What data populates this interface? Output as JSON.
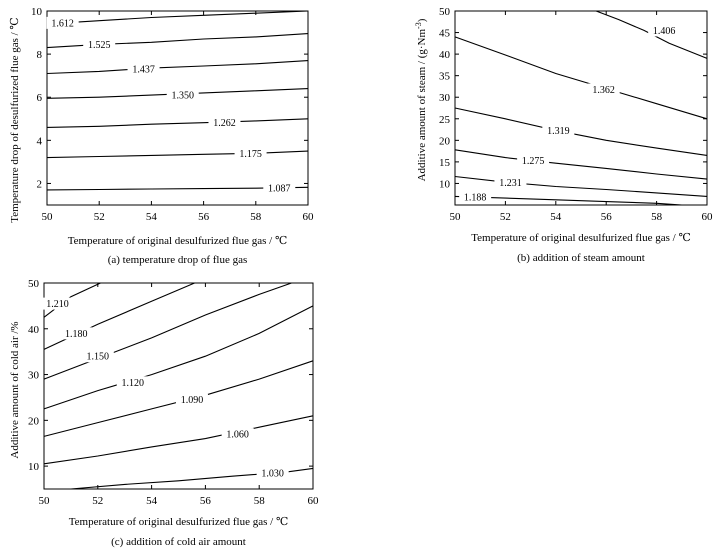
{
  "chart_data": [
    {
      "type": "contour",
      "caption": "(a) temperature drop of flue gas",
      "xlabel": "Temperature of original desulfurized flue gas / ℃",
      "ylabel": "Temperature drop of desulfurized flue gas / ℃",
      "xlim": [
        50,
        60
      ],
      "ylim": [
        1,
        10
      ],
      "xticks": [
        "50",
        "52",
        "54",
        "56",
        "58",
        "60"
      ],
      "yticks": [
        "2",
        "4",
        "6",
        "8",
        "10"
      ],
      "contours": [
        {
          "level": "1.612",
          "points": [
            [
              50,
              9.4
            ],
            [
              52,
              9.55
            ],
            [
              54,
              9.7
            ],
            [
              56,
              9.8
            ],
            [
              58,
              9.9
            ],
            [
              60,
              10.0
            ]
          ],
          "label_at": [
            50.6,
            9.45
          ]
        },
        {
          "level": "1.525",
          "points": [
            [
              50,
              8.3
            ],
            [
              52,
              8.45
            ],
            [
              54,
              8.55
            ],
            [
              56,
              8.7
            ],
            [
              58,
              8.8
            ],
            [
              60,
              8.95
            ]
          ],
          "label_at": [
            52.0,
            8.45
          ]
        },
        {
          "level": "1.437",
          "points": [
            [
              50,
              7.1
            ],
            [
              52,
              7.2
            ],
            [
              54,
              7.35
            ],
            [
              56,
              7.45
            ],
            [
              58,
              7.55
            ],
            [
              60,
              7.7
            ]
          ],
          "label_at": [
            53.7,
            7.3
          ]
        },
        {
          "level": "1.350",
          "points": [
            [
              50,
              5.95
            ],
            [
              52,
              6.0
            ],
            [
              54,
              6.1
            ],
            [
              56,
              6.2
            ],
            [
              58,
              6.3
            ],
            [
              60,
              6.4
            ]
          ],
          "label_at": [
            55.2,
            6.1
          ]
        },
        {
          "level": "1.262",
          "points": [
            [
              50,
              4.6
            ],
            [
              52,
              4.65
            ],
            [
              54,
              4.75
            ],
            [
              56,
              4.82
            ],
            [
              58,
              4.9
            ],
            [
              60,
              5.0
            ]
          ],
          "label_at": [
            56.8,
            4.82
          ]
        },
        {
          "level": "1.175",
          "points": [
            [
              50,
              3.2
            ],
            [
              52,
              3.25
            ],
            [
              54,
              3.3
            ],
            [
              56,
              3.35
            ],
            [
              58,
              3.4
            ],
            [
              60,
              3.5
            ]
          ],
          "label_at": [
            57.8,
            3.4
          ]
        },
        {
          "level": "1.087",
          "points": [
            [
              50,
              1.7
            ],
            [
              52,
              1.72
            ],
            [
              54,
              1.74
            ],
            [
              56,
              1.76
            ],
            [
              58,
              1.78
            ],
            [
              60,
              1.82
            ]
          ],
          "label_at": [
            58.9,
            1.78
          ]
        }
      ]
    },
    {
      "type": "contour",
      "caption": "(b) addition of steam amount",
      "xlabel": "Temperature of original desulfurized flue gas / ℃",
      "ylabel": "Additive amount of steam / (g·Nm",
      "ylabel_sup": "-3",
      "ylabel_end": ")",
      "xlim": [
        50,
        60
      ],
      "ylim": [
        5,
        50
      ],
      "xticks": [
        "50",
        "52",
        "54",
        "56",
        "58",
        "60"
      ],
      "yticks": [
        "10",
        "15",
        "20",
        "25",
        "30",
        "35",
        "40",
        "45",
        "50"
      ],
      "contours": [
        {
          "level": "1.406",
          "points": [
            [
              55.6,
              50
            ],
            [
              56.5,
              48.0
            ],
            [
              57.5,
              45.5
            ],
            [
              58.5,
              42.5
            ],
            [
              60,
              39.0
            ]
          ],
          "label_at": [
            58.3,
            45.5
          ]
        },
        {
          "level": "1.362",
          "points": [
            [
              50,
              44.0
            ],
            [
              52,
              39.8
            ],
            [
              54,
              35.5
            ],
            [
              56,
              32.0
            ],
            [
              58,
              28.5
            ],
            [
              60,
              25.0
            ]
          ],
          "label_at": [
            55.9,
            31.8
          ]
        },
        {
          "level": "1.319",
          "points": [
            [
              50,
              27.5
            ],
            [
              52,
              25.0
            ],
            [
              54,
              22.3
            ],
            [
              56,
              20.0
            ],
            [
              58,
              18.2
            ],
            [
              60,
              16.5
            ]
          ],
          "label_at": [
            54.1,
            22.3
          ]
        },
        {
          "level": "1.275",
          "points": [
            [
              50,
              17.8
            ],
            [
              52,
              16.0
            ],
            [
              54,
              14.7
            ],
            [
              56,
              13.5
            ],
            [
              58,
              12.2
            ],
            [
              60,
              11.0
            ]
          ],
          "label_at": [
            53.1,
            15.3
          ]
        },
        {
          "level": "1.231",
          "points": [
            [
              50,
              11.6
            ],
            [
              52,
              10.3
            ],
            [
              54,
              9.3
            ],
            [
              56,
              8.6
            ],
            [
              58,
              7.8
            ],
            [
              60,
              7.0
            ]
          ],
          "label_at": [
            52.2,
            10.2
          ]
        },
        {
          "level": "1.188",
          "points": [
            [
              50,
              7.0
            ],
            [
              52,
              6.6
            ],
            [
              54,
              6.2
            ],
            [
              56,
              5.8
            ],
            [
              58,
              5.4
            ],
            [
              59.0,
              5.0
            ]
          ],
          "label_at": [
            50.8,
            6.9
          ]
        }
      ]
    },
    {
      "type": "contour",
      "caption": "(c) addition of cold air amount",
      "xlabel": "Temperature of original desulfurized flue gas / ℃",
      "ylabel": "Additive amount of cold air /%",
      "xlim": [
        50,
        60
      ],
      "ylim": [
        5,
        50
      ],
      "xticks": [
        "50",
        "52",
        "54",
        "56",
        "58",
        "60"
      ],
      "yticks": [
        "10",
        "20",
        "30",
        "40",
        "50"
      ],
      "contours": [
        {
          "level": "1.210",
          "points": [
            [
              50,
              42.5
            ],
            [
              51,
              47.0
            ],
            [
              52.1,
              50
            ]
          ],
          "label_at": [
            50.5,
            45.5
          ]
        },
        {
          "level": "1.180",
          "points": [
            [
              50,
              35.5
            ],
            [
              52,
              41.0
            ],
            [
              54,
              46.0
            ],
            [
              55.6,
              50
            ]
          ],
          "label_at": [
            51.2,
            39.0
          ]
        },
        {
          "level": "1.150",
          "points": [
            [
              50,
              29.0
            ],
            [
              52,
              33.5
            ],
            [
              54,
              38.0
            ],
            [
              56,
              43.0
            ],
            [
              58,
              47.5
            ],
            [
              59.2,
              50
            ]
          ],
          "label_at": [
            52.0,
            34.0
          ]
        },
        {
          "level": "1.120",
          "points": [
            [
              50,
              22.5
            ],
            [
              52,
              26.5
            ],
            [
              54,
              30.0
            ],
            [
              56,
              34.0
            ],
            [
              58,
              39.0
            ],
            [
              60,
              45.0
            ]
          ],
          "label_at": [
            53.3,
            28.3
          ]
        },
        {
          "level": "1.090",
          "points": [
            [
              50,
              16.5
            ],
            [
              52,
              19.5
            ],
            [
              54,
              22.5
            ],
            [
              56,
              25.5
            ],
            [
              58,
              29.0
            ],
            [
              60,
              33.0
            ]
          ],
          "label_at": [
            55.5,
            24.5
          ]
        },
        {
          "level": "1.060",
          "points": [
            [
              50,
              10.5
            ],
            [
              52,
              12.2
            ],
            [
              54,
              14.2
            ],
            [
              56,
              16.0
            ],
            [
              58,
              18.5
            ],
            [
              60,
              21.0
            ]
          ],
          "label_at": [
            57.2,
            17.0
          ]
        },
        {
          "level": "1.030",
          "points": [
            [
              51.0,
              5.0
            ],
            [
              53,
              6.0
            ],
            [
              55,
              6.8
            ],
            [
              57,
              7.8
            ],
            [
              59,
              8.7
            ],
            [
              60,
              9.5
            ]
          ],
          "label_at": [
            58.5,
            8.5
          ]
        }
      ]
    }
  ]
}
